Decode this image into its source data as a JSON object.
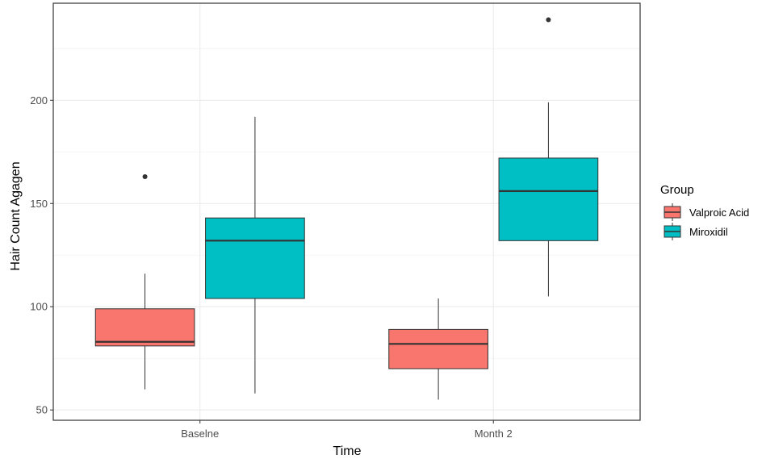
{
  "chart_data": {
    "type": "boxplot",
    "title": "",
    "xlabel": "Time",
    "ylabel": "Hair Count Agagen",
    "categories": [
      "Baselne",
      "Month 2"
    ],
    "ylim": [
      45,
      247
    ],
    "yticks": [
      50,
      100,
      150,
      200
    ],
    "grid": true,
    "legend": {
      "title": "Group",
      "placement": "right"
    },
    "series": [
      {
        "name": "Valproic Acid",
        "color": "#F8766D",
        "boxes": [
          {
            "category": "Baselne",
            "whisker_low": 60,
            "q1": 81,
            "median": 83,
            "q3": 99,
            "whisker_high": 116,
            "outliers": [
              163
            ]
          },
          {
            "category": "Month 2",
            "whisker_low": 55,
            "q1": 70,
            "median": 82,
            "q3": 89,
            "whisker_high": 104,
            "outliers": []
          }
        ]
      },
      {
        "name": "Miroxidil",
        "color": "#00BFC4",
        "boxes": [
          {
            "category": "Baselne",
            "whisker_low": 58,
            "q1": 104,
            "median": 132,
            "q3": 143,
            "whisker_high": 192,
            "outliers": []
          },
          {
            "category": "Month 2",
            "whisker_low": 105,
            "q1": 132,
            "median": 156,
            "q3": 172,
            "whisker_high": 199,
            "outliers": [
              239
            ]
          }
        ]
      }
    ]
  }
}
